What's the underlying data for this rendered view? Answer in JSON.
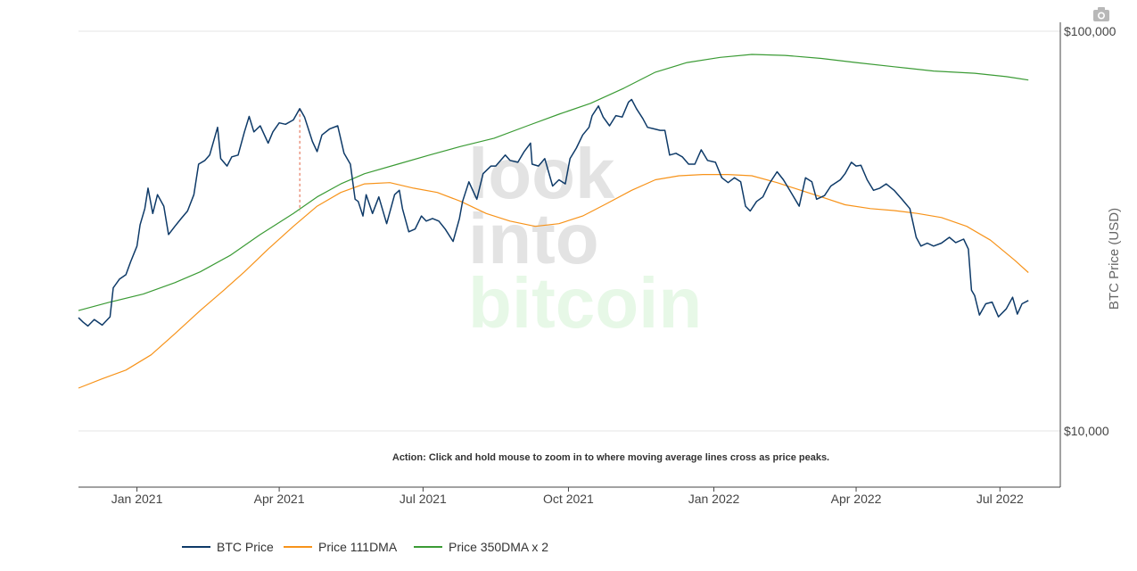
{
  "chart_data": {
    "type": "line",
    "y_scale": "log",
    "ylabel": "BTC Price (USD)",
    "ylim": [
      10000,
      100000
    ],
    "y_ticks": [
      {
        "value": 100000,
        "label": "$100,000"
      },
      {
        "value": 10000,
        "label": "$10,000"
      }
    ],
    "xlim": [
      "2020-11-25",
      "2022-07-20"
    ],
    "x_ticks": [
      {
        "date": "2021-01-01",
        "label": "Jan 2021"
      },
      {
        "date": "2021-04-01",
        "label": "Apr 2021"
      },
      {
        "date": "2021-07-01",
        "label": "Jul 2021"
      },
      {
        "date": "2021-10-01",
        "label": "Oct 2021"
      },
      {
        "date": "2022-01-01",
        "label": "Jan 2022"
      },
      {
        "date": "2022-04-01",
        "label": "Apr 2022"
      },
      {
        "date": "2022-07-01",
        "label": "Jul 2022"
      }
    ],
    "annotation": "Action: Click and hold mouse to zoom in to where moving average lines cross as price peaks.",
    "legend_position": "bottom",
    "watermark": [
      "look",
      "into",
      "bitcoin"
    ],
    "series": [
      {
        "name": "BTC Price",
        "color": "#0e3a68",
        "points": [
          [
            "2020-11-25",
            19200
          ],
          [
            "2020-11-28",
            18700
          ],
          [
            "2020-12-01",
            18300
          ],
          [
            "2020-12-05",
            19000
          ],
          [
            "2020-12-10",
            18400
          ],
          [
            "2020-12-15",
            19300
          ],
          [
            "2020-12-17",
            22800
          ],
          [
            "2020-12-21",
            24000
          ],
          [
            "2020-12-25",
            24600
          ],
          [
            "2020-12-28",
            26500
          ],
          [
            "2021-01-01",
            29000
          ],
          [
            "2021-01-03",
            32800
          ],
          [
            "2021-01-06",
            36000
          ],
          [
            "2021-01-08",
            40500
          ],
          [
            "2021-01-11",
            35000
          ],
          [
            "2021-01-14",
            39000
          ],
          [
            "2021-01-18",
            36500
          ],
          [
            "2021-01-21",
            31000
          ],
          [
            "2021-01-25",
            32500
          ],
          [
            "2021-01-29",
            34000
          ],
          [
            "2021-02-02",
            35500
          ],
          [
            "2021-02-06",
            39000
          ],
          [
            "2021-02-09",
            46500
          ],
          [
            "2021-02-13",
            47500
          ],
          [
            "2021-02-16",
            49000
          ],
          [
            "2021-02-21",
            57500
          ],
          [
            "2021-02-23",
            48000
          ],
          [
            "2021-02-27",
            46000
          ],
          [
            "2021-03-02",
            48500
          ],
          [
            "2021-03-06",
            49000
          ],
          [
            "2021-03-10",
            56000
          ],
          [
            "2021-03-13",
            61200
          ],
          [
            "2021-03-16",
            56000
          ],
          [
            "2021-03-20",
            58000
          ],
          [
            "2021-03-25",
            52500
          ],
          [
            "2021-03-28",
            56000
          ],
          [
            "2021-04-01",
            59000
          ],
          [
            "2021-04-05",
            58500
          ],
          [
            "2021-04-10",
            60000
          ],
          [
            "2021-04-14",
            64000
          ],
          [
            "2021-04-17",
            61000
          ],
          [
            "2021-04-22",
            53000
          ],
          [
            "2021-04-25",
            50000
          ],
          [
            "2021-04-28",
            55000
          ],
          [
            "2021-05-03",
            57000
          ],
          [
            "2021-05-08",
            58000
          ],
          [
            "2021-05-12",
            49500
          ],
          [
            "2021-05-16",
            46500
          ],
          [
            "2021-05-19",
            38000
          ],
          [
            "2021-05-21",
            37500
          ],
          [
            "2021-05-24",
            34500
          ],
          [
            "2021-05-26",
            39000
          ],
          [
            "2021-05-30",
            35000
          ],
          [
            "2021-06-03",
            38500
          ],
          [
            "2021-06-08",
            33000
          ],
          [
            "2021-06-13",
            39000
          ],
          [
            "2021-06-16",
            40000
          ],
          [
            "2021-06-18",
            36000
          ],
          [
            "2021-06-22",
            31500
          ],
          [
            "2021-06-26",
            32000
          ],
          [
            "2021-06-30",
            34500
          ],
          [
            "2021-07-03",
            33500
          ],
          [
            "2021-07-07",
            34000
          ],
          [
            "2021-07-11",
            33500
          ],
          [
            "2021-07-15",
            32000
          ],
          [
            "2021-07-20",
            29800
          ],
          [
            "2021-07-24",
            34000
          ],
          [
            "2021-07-26",
            37500
          ],
          [
            "2021-07-30",
            42000
          ],
          [
            "2021-08-04",
            38000
          ],
          [
            "2021-08-08",
            44000
          ],
          [
            "2021-08-13",
            46000
          ],
          [
            "2021-08-16",
            46000
          ],
          [
            "2021-08-22",
            49000
          ],
          [
            "2021-08-25",
            47500
          ],
          [
            "2021-08-30",
            47000
          ],
          [
            "2021-09-03",
            50000
          ],
          [
            "2021-09-07",
            52500
          ],
          [
            "2021-09-08",
            46500
          ],
          [
            "2021-09-12",
            46000
          ],
          [
            "2021-09-16",
            48000
          ],
          [
            "2021-09-21",
            41000
          ],
          [
            "2021-09-25",
            42500
          ],
          [
            "2021-09-29",
            41500
          ],
          [
            "2021-10-02",
            48000
          ],
          [
            "2021-10-06",
            51000
          ],
          [
            "2021-10-10",
            55000
          ],
          [
            "2021-10-14",
            57500
          ],
          [
            "2021-10-16",
            61500
          ],
          [
            "2021-10-20",
            65000
          ],
          [
            "2021-10-23",
            61000
          ],
          [
            "2021-10-27",
            58000
          ],
          [
            "2021-10-31",
            61500
          ],
          [
            "2021-11-04",
            61000
          ],
          [
            "2021-11-08",
            66500
          ],
          [
            "2021-11-10",
            67500
          ],
          [
            "2021-11-13",
            64000
          ],
          [
            "2021-11-17",
            60500
          ],
          [
            "2021-11-20",
            57500
          ],
          [
            "2021-11-24",
            57000
          ],
          [
            "2021-11-28",
            56500
          ],
          [
            "2021-12-01",
            56500
          ],
          [
            "2021-12-04",
            49000
          ],
          [
            "2021-12-08",
            49500
          ],
          [
            "2021-12-12",
            48500
          ],
          [
            "2021-12-16",
            46500
          ],
          [
            "2021-12-20",
            46500
          ],
          [
            "2021-12-24",
            50500
          ],
          [
            "2021-12-28",
            47500
          ],
          [
            "2022-01-02",
            47000
          ],
          [
            "2022-01-06",
            43000
          ],
          [
            "2022-01-10",
            41800
          ],
          [
            "2022-01-14",
            43000
          ],
          [
            "2022-01-18",
            42000
          ],
          [
            "2022-01-21",
            36500
          ],
          [
            "2022-01-24",
            35500
          ],
          [
            "2022-01-28",
            37500
          ],
          [
            "2022-02-01",
            38500
          ],
          [
            "2022-02-05",
            41500
          ],
          [
            "2022-02-10",
            44500
          ],
          [
            "2022-02-14",
            42500
          ],
          [
            "2022-02-18",
            40000
          ],
          [
            "2022-02-24",
            36500
          ],
          [
            "2022-02-28",
            43000
          ],
          [
            "2022-03-04",
            42000
          ],
          [
            "2022-03-07",
            38000
          ],
          [
            "2022-03-12",
            38800
          ],
          [
            "2022-03-16",
            41000
          ],
          [
            "2022-03-22",
            42500
          ],
          [
            "2022-03-25",
            44000
          ],
          [
            "2022-03-29",
            47000
          ],
          [
            "2022-04-01",
            46000
          ],
          [
            "2022-04-04",
            46200
          ],
          [
            "2022-04-08",
            42500
          ],
          [
            "2022-04-12",
            40000
          ],
          [
            "2022-04-16",
            40500
          ],
          [
            "2022-04-20",
            41500
          ],
          [
            "2022-04-25",
            40000
          ],
          [
            "2022-04-30",
            38000
          ],
          [
            "2022-05-05",
            36000
          ],
          [
            "2022-05-09",
            30500
          ],
          [
            "2022-05-12",
            29000
          ],
          [
            "2022-05-16",
            29500
          ],
          [
            "2022-05-20",
            29000
          ],
          [
            "2022-05-25",
            29500
          ],
          [
            "2022-05-30",
            30500
          ],
          [
            "2022-06-03",
            29600
          ],
          [
            "2022-06-08",
            30200
          ],
          [
            "2022-06-11",
            28500
          ],
          [
            "2022-06-13",
            22500
          ],
          [
            "2022-06-15",
            21800
          ],
          [
            "2022-06-18",
            19500
          ],
          [
            "2022-06-22",
            20800
          ],
          [
            "2022-06-26",
            21000
          ],
          [
            "2022-06-30",
            19300
          ],
          [
            "2022-07-05",
            20200
          ],
          [
            "2022-07-09",
            21600
          ],
          [
            "2022-07-12",
            19600
          ],
          [
            "2022-07-15",
            20800
          ],
          [
            "2022-07-19",
            21200
          ]
        ]
      },
      {
        "name": "Price 111DMA",
        "color": "#f7931a",
        "points": [
          [
            "2020-11-25",
            12800
          ],
          [
            "2020-12-10",
            13500
          ],
          [
            "2020-12-25",
            14200
          ],
          [
            "2021-01-10",
            15500
          ],
          [
            "2021-01-25",
            17500
          ],
          [
            "2021-02-10",
            20000
          ],
          [
            "2021-02-25",
            22500
          ],
          [
            "2021-03-10",
            25000
          ],
          [
            "2021-03-25",
            28500
          ],
          [
            "2021-04-10",
            32500
          ],
          [
            "2021-04-25",
            36500
          ],
          [
            "2021-05-10",
            39500
          ],
          [
            "2021-05-25",
            41500
          ],
          [
            "2021-06-10",
            41800
          ],
          [
            "2021-06-25",
            40500
          ],
          [
            "2021-07-10",
            39500
          ],
          [
            "2021-07-25",
            37500
          ],
          [
            "2021-08-10",
            35000
          ],
          [
            "2021-08-25",
            33500
          ],
          [
            "2021-09-10",
            32500
          ],
          [
            "2021-09-25",
            33000
          ],
          [
            "2021-10-10",
            34500
          ],
          [
            "2021-10-25",
            37000
          ],
          [
            "2021-11-10",
            40000
          ],
          [
            "2021-11-25",
            42500
          ],
          [
            "2021-12-10",
            43500
          ],
          [
            "2021-12-25",
            43800
          ],
          [
            "2022-01-10",
            43800
          ],
          [
            "2022-01-25",
            43500
          ],
          [
            "2022-02-10",
            41800
          ],
          [
            "2022-02-25",
            40000
          ],
          [
            "2022-03-10",
            38500
          ],
          [
            "2022-03-25",
            36800
          ],
          [
            "2022-04-10",
            36000
          ],
          [
            "2022-04-25",
            35600
          ],
          [
            "2022-05-10",
            35000
          ],
          [
            "2022-05-25",
            34200
          ],
          [
            "2022-06-10",
            32500
          ],
          [
            "2022-06-25",
            30000
          ],
          [
            "2022-07-10",
            26800
          ],
          [
            "2022-07-19",
            24900
          ]
        ]
      },
      {
        "name": "Price 350DMA x 2",
        "color": "#3b9b35",
        "points": [
          [
            "2020-11-25",
            20000
          ],
          [
            "2020-12-15",
            21000
          ],
          [
            "2021-01-05",
            22000
          ],
          [
            "2021-01-25",
            23500
          ],
          [
            "2021-02-10",
            25000
          ],
          [
            "2021-03-01",
            27500
          ],
          [
            "2021-03-20",
            31000
          ],
          [
            "2021-04-10",
            35000
          ],
          [
            "2021-04-25",
            38500
          ],
          [
            "2021-05-10",
            41500
          ],
          [
            "2021-05-25",
            44000
          ],
          [
            "2021-06-15",
            46500
          ],
          [
            "2021-07-05",
            49000
          ],
          [
            "2021-07-25",
            51500
          ],
          [
            "2021-08-15",
            54000
          ],
          [
            "2021-09-05",
            58000
          ],
          [
            "2021-09-25",
            62000
          ],
          [
            "2021-10-15",
            66000
          ],
          [
            "2021-11-05",
            72000
          ],
          [
            "2021-11-25",
            79000
          ],
          [
            "2021-12-15",
            83500
          ],
          [
            "2022-01-05",
            86000
          ],
          [
            "2022-01-25",
            87500
          ],
          [
            "2022-02-15",
            87000
          ],
          [
            "2022-03-10",
            85500
          ],
          [
            "2022-04-01",
            83500
          ],
          [
            "2022-04-25",
            81500
          ],
          [
            "2022-05-20",
            79500
          ],
          [
            "2022-06-15",
            78500
          ],
          [
            "2022-07-05",
            77000
          ],
          [
            "2022-07-19",
            75500
          ]
        ]
      }
    ],
    "peak_marker": {
      "date": "2021-04-14",
      "color": "#e06040"
    }
  }
}
